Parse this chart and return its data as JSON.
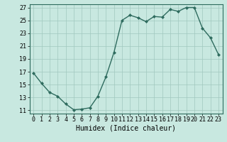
{
  "x": [
    0,
    1,
    2,
    3,
    4,
    5,
    6,
    7,
    8,
    9,
    10,
    11,
    12,
    13,
    14,
    15,
    16,
    17,
    18,
    19,
    20,
    21,
    22,
    23
  ],
  "y": [
    16.8,
    15.2,
    13.8,
    13.2,
    12.0,
    11.1,
    11.2,
    11.4,
    13.2,
    16.2,
    20.0,
    25.0,
    25.8,
    25.4,
    24.8,
    25.6,
    25.5,
    26.7,
    26.4,
    27.0,
    27.0,
    23.8,
    22.3,
    19.7
  ],
  "line_color": "#2e6b5e",
  "marker": "D",
  "marker_size": 2,
  "bg_color": "#c8e8e0",
  "grid_color": "#a0c8be",
  "xlabel": "Humidex (Indice chaleur)",
  "ylim_min": 10.5,
  "ylim_max": 27.5,
  "xlim_min": -0.5,
  "xlim_max": 23.5,
  "yticks": [
    11,
    13,
    15,
    17,
    19,
    21,
    23,
    25,
    27
  ],
  "xticks": [
    0,
    1,
    2,
    3,
    4,
    5,
    6,
    7,
    8,
    9,
    10,
    11,
    12,
    13,
    14,
    15,
    16,
    17,
    18,
    19,
    20,
    21,
    22,
    23
  ],
  "tick_fontsize": 6,
  "xlabel_fontsize": 7,
  "linewidth": 1.0
}
